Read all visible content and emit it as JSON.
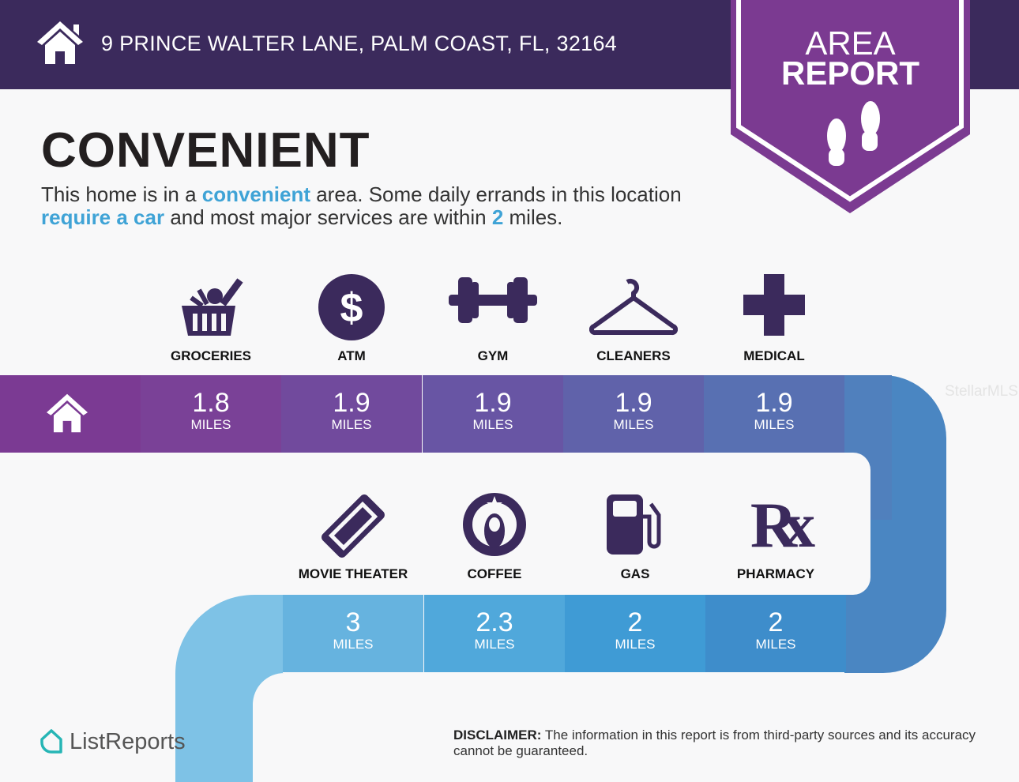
{
  "header": {
    "address": "9 PRINCE WALTER LANE, PALM COAST, FL, 32164",
    "icon": "house-icon"
  },
  "badge": {
    "line1": "AREA",
    "line2": "REPORT",
    "icon": "footprints-icon",
    "color": "#7b3a91"
  },
  "title": "CONVENIENT",
  "description": {
    "p1": "This home is in a ",
    "h1": "convenient",
    "p2": " area. Some daily errands in this location ",
    "h2": "require a car",
    "p3": " and most major services are within ",
    "h3": "2",
    "p4": " miles."
  },
  "row1": [
    {
      "label": "GROCERIES",
      "value": "1.8",
      "unit": "MILES",
      "icon": "grocery-basket-icon",
      "color": "#7a4197"
    },
    {
      "label": "ATM",
      "value": "1.9",
      "unit": "MILES",
      "icon": "dollar-icon",
      "color": "#714a9d"
    },
    {
      "label": "GYM",
      "value": "1.9",
      "unit": "MILES",
      "icon": "dumbbell-icon",
      "color": "#6855a4"
    },
    {
      "label": "CLEANERS",
      "value": "1.9",
      "unit": "MILES",
      "icon": "hanger-icon",
      "color": "#6062aa"
    },
    {
      "label": "MEDICAL",
      "value": "1.9",
      "unit": "MILES",
      "icon": "medical-cross-icon",
      "color": "#5870b2"
    }
  ],
  "row2": [
    {
      "label": "MOVIE THEATER",
      "value": "3",
      "unit": "MILES",
      "icon": "ticket-icon",
      "color": "#66b3df"
    },
    {
      "label": "COFFEE",
      "value": "2.3",
      "unit": "MILES",
      "icon": "coffee-logo-icon",
      "color": "#50a8db"
    },
    {
      "label": "GAS",
      "value": "2",
      "unit": "MILES",
      "icon": "gas-pump-icon",
      "color": "#3f9bd5"
    },
    {
      "label": "PHARMACY",
      "value": "2",
      "unit": "MILES",
      "icon": "rx-icon",
      "color": "#3e8dcb"
    }
  ],
  "rx": "Rx",
  "footer": {
    "logo": "ListReports",
    "disclaimer_label": "DISCLAIMER:",
    "disclaimer": " The information in this report is from third-party sources and its accuracy cannot be guaranteed."
  },
  "watermark": "StellarMLS"
}
